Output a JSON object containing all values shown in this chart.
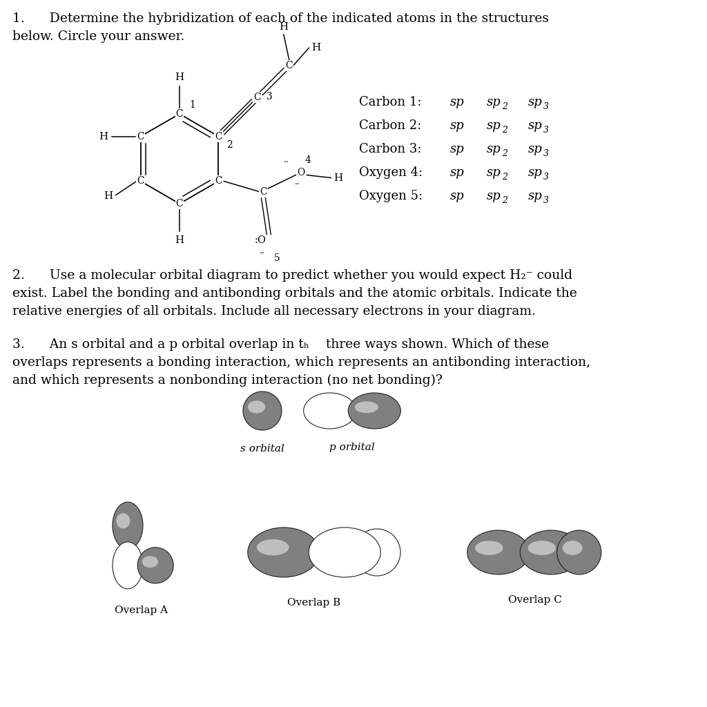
{
  "bg_color": "#ffffff",
  "page_width": 10.24,
  "page_height": 10.24,
  "q1_line1": "1.      Determine the hybridization of each of the indicated atoms in the structures",
  "q1_line2": "below. Circle your answer.",
  "q2_line1": "2.      Use a molecular orbital diagram to predict whether you would expect H₂⁻ could",
  "q2_line2": "exist. Label the bonding and antibonding orbitals and the atomic orbitals. Indicate the",
  "q2_line3": "relative energies of all orbitals. Include all necessary electrons in your diagram.",
  "q3_line1": "3.      An s orbital and a p orbital overlap in tₕ    three ways shown. Which of these",
  "q3_line2": "overlaps represents a bonding interaction, which represents an antibonding interaction,",
  "q3_line3": "and which represents a nonbonding interaction (no net bonding)?",
  "hybrid_rows": [
    [
      "Carbon 1: ",
      "sp",
      "sp",
      "2",
      "sp",
      "3"
    ],
    [
      "Carbon 2: ",
      "sp",
      "sp",
      "2",
      "sp",
      "3"
    ],
    [
      "Carbon 3: ",
      "sp",
      "sp",
      "2",
      "sp",
      "3"
    ],
    [
      "Oxygen 4: ",
      "sp",
      "sp",
      "2",
      "sp",
      "3"
    ],
    [
      "Oxygen 5: ",
      "sp",
      "sp",
      "2",
      "sp",
      "3"
    ]
  ],
  "dark_gray": "#808080",
  "mid_gray": "#aaaaaa",
  "light_gray": "#d4d4d4",
  "text_color": "#1a1a1a"
}
